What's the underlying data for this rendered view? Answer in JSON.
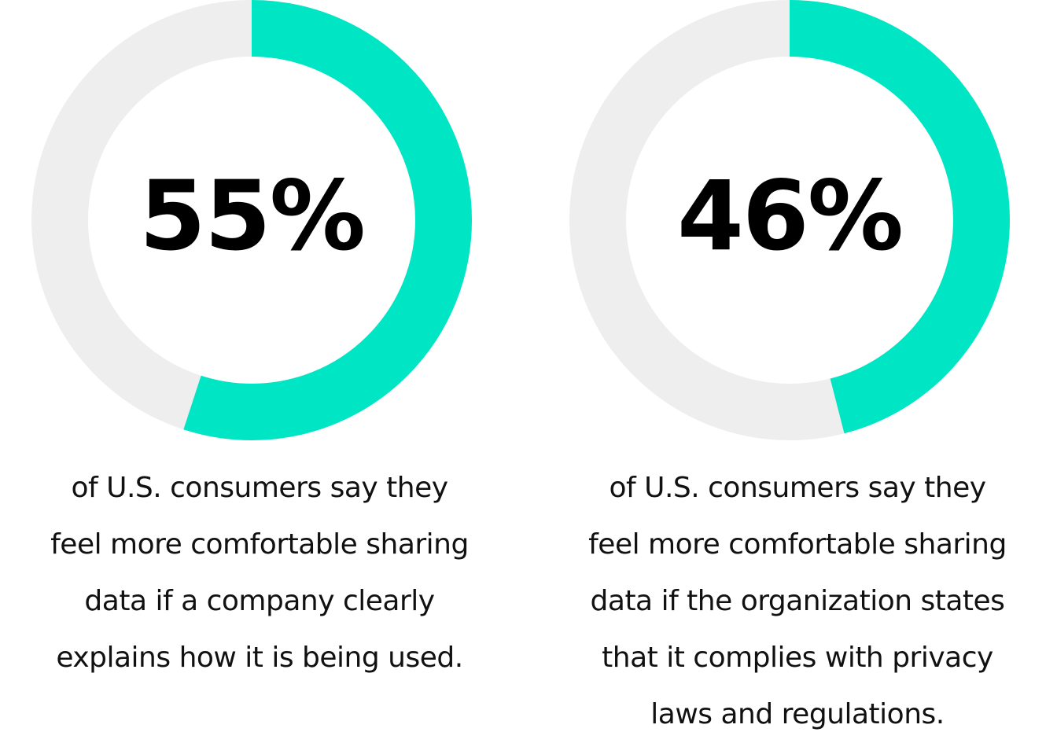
{
  "chart_data": [
    {
      "type": "pie",
      "variant": "donut",
      "value": 55,
      "max": 100,
      "label": "55%",
      "caption_lines": [
        "of U.S. consumers say they",
        "feel more comfortable sharing",
        "data if a company clearly",
        "explains how it is being used."
      ]
    },
    {
      "type": "pie",
      "variant": "donut",
      "value": 46,
      "max": 100,
      "label": "46%",
      "caption_lines": [
        "of U.S. consumers say they",
        "feel more comfortable sharing",
        "data if the organization states",
        "that it complies with privacy",
        "laws and regulations."
      ]
    }
  ],
  "colors": {
    "accent": "#00E5C4",
    "track": "#EEEEEE",
    "text": "#000000"
  }
}
